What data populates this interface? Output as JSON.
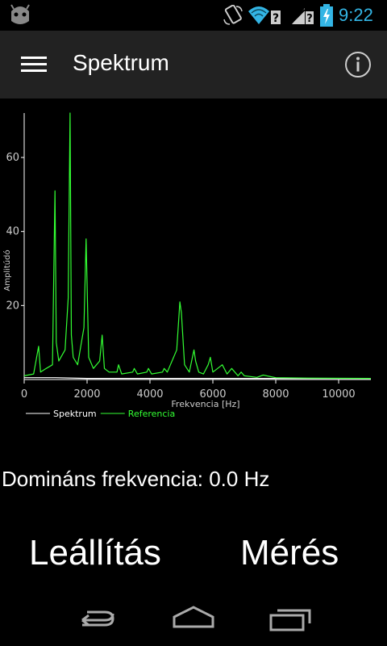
{
  "status_bar": {
    "time": "9:22",
    "icons": [
      "android-icon",
      "rotate-icon",
      "wifi-icon",
      "signal-icon",
      "battery-icon"
    ],
    "clock_color": "#33b5e5"
  },
  "action_bar": {
    "title": "Spektrum",
    "menu_icon": "hamburger-menu-icon",
    "info_icon": "info-icon"
  },
  "chart_data": {
    "type": "line",
    "xlabel": "Frekvencia [Hz]",
    "ylabel": "Amplitúdó",
    "xlim": [
      0,
      11025
    ],
    "ylim": [
      0,
      72
    ],
    "x_ticks": [
      0,
      2000,
      4000,
      6000,
      8000,
      10000
    ],
    "y_ticks": [
      20,
      40,
      60
    ],
    "legend_position": "bottom-left",
    "series": [
      {
        "name": "Spektrum",
        "color": "#ffffff",
        "x": [
          0,
          1000,
          2000,
          4000,
          6000,
          8000,
          11025
        ],
        "y": [
          0.5,
          0.5,
          0.3,
          0.3,
          0.3,
          0.3,
          0.3
        ]
      },
      {
        "name": "Referencia",
        "color": "#33ff33",
        "x": [
          0,
          300,
          460,
          520,
          700,
          900,
          980,
          1020,
          1100,
          1300,
          1400,
          1460,
          1500,
          1560,
          1700,
          1900,
          1970,
          2050,
          2200,
          2400,
          2480,
          2550,
          2700,
          2950,
          3000,
          3100,
          3450,
          3500,
          3600,
          3900,
          3950,
          4050,
          4400,
          4450,
          4550,
          4750,
          4850,
          4950,
          5000,
          5100,
          5250,
          5400,
          5450,
          5550,
          5700,
          5850,
          5920,
          6000,
          6150,
          6300,
          6450,
          6600,
          6800,
          6900,
          7000,
          7200,
          7400,
          7600,
          8000,
          9000,
          11025
        ],
        "y": [
          1,
          1.5,
          9,
          2,
          3,
          4,
          51,
          10,
          5,
          8,
          22,
          72,
          12,
          6,
          4,
          14,
          38,
          6,
          3,
          5,
          12,
          3,
          2,
          2,
          4,
          1.5,
          2,
          3,
          1.5,
          2,
          3,
          1.5,
          2,
          3,
          2,
          6,
          8,
          21,
          18,
          4,
          2,
          8,
          5,
          2,
          1.5,
          4,
          6,
          2,
          3,
          4,
          1.5,
          3,
          1,
          2,
          1,
          0.8,
          0.6,
          1.2,
          0.5,
          0.4,
          0.3
        ]
      }
    ]
  },
  "dominant": {
    "text": "Domináns frekvencia: 0.0 Hz"
  },
  "buttons": {
    "stop_label": "Leállítás",
    "measure_label": "Mérés"
  },
  "nav_bar": {
    "icons": [
      "back-icon",
      "home-icon",
      "recents-icon"
    ]
  }
}
